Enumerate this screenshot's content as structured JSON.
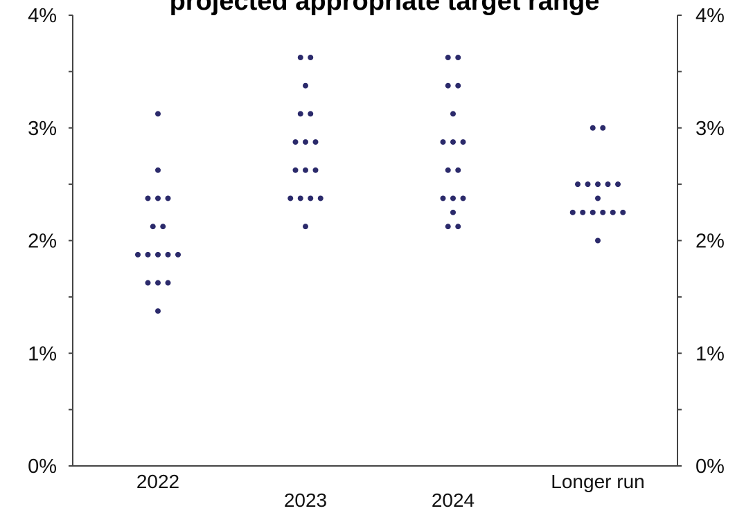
{
  "chart_data": {
    "type": "scatter",
    "title": "projected appropriate target range",
    "categories": [
      "2022",
      "2023",
      "2024",
      "Longer run"
    ],
    "yticks": [
      {
        "value": 0,
        "label": "0%"
      },
      {
        "value": 1,
        "label": "1%"
      },
      {
        "value": 2,
        "label": "2%"
      },
      {
        "value": 3,
        "label": "3%"
      },
      {
        "value": 4,
        "label": "4%"
      }
    ],
    "ylim": [
      0,
      4
    ],
    "minor_step": 0.5,
    "grid": false,
    "dot_color": "#2b2a6b",
    "series": [
      {
        "category": "2022",
        "dots": [
          {
            "y": 3.125,
            "count": 1
          },
          {
            "y": 2.625,
            "count": 1
          },
          {
            "y": 2.375,
            "count": 3
          },
          {
            "y": 2.125,
            "count": 2
          },
          {
            "y": 1.875,
            "count": 5
          },
          {
            "y": 1.625,
            "count": 3
          },
          {
            "y": 1.375,
            "count": 1
          }
        ]
      },
      {
        "category": "2023",
        "dots": [
          {
            "y": 3.625,
            "count": 2
          },
          {
            "y": 3.375,
            "count": 1
          },
          {
            "y": 3.125,
            "count": 2
          },
          {
            "y": 2.875,
            "count": 3
          },
          {
            "y": 2.625,
            "count": 3
          },
          {
            "y": 2.375,
            "count": 4
          },
          {
            "y": 2.125,
            "count": 1
          }
        ]
      },
      {
        "category": "2024",
        "dots": [
          {
            "y": 3.625,
            "count": 2
          },
          {
            "y": 3.375,
            "count": 2
          },
          {
            "y": 3.125,
            "count": 1
          },
          {
            "y": 2.875,
            "count": 3
          },
          {
            "y": 2.625,
            "count": 2
          },
          {
            "y": 2.375,
            "count": 3
          },
          {
            "y": 2.25,
            "count": 1
          },
          {
            "y": 2.125,
            "count": 2
          }
        ]
      },
      {
        "category": "Longer run",
        "dots": [
          {
            "y": 3.0,
            "count": 2
          },
          {
            "y": 2.5,
            "count": 5
          },
          {
            "y": 2.375,
            "count": 1
          },
          {
            "y": 2.25,
            "count": 6
          },
          {
            "y": 2.0,
            "count": 1
          }
        ]
      }
    ]
  }
}
